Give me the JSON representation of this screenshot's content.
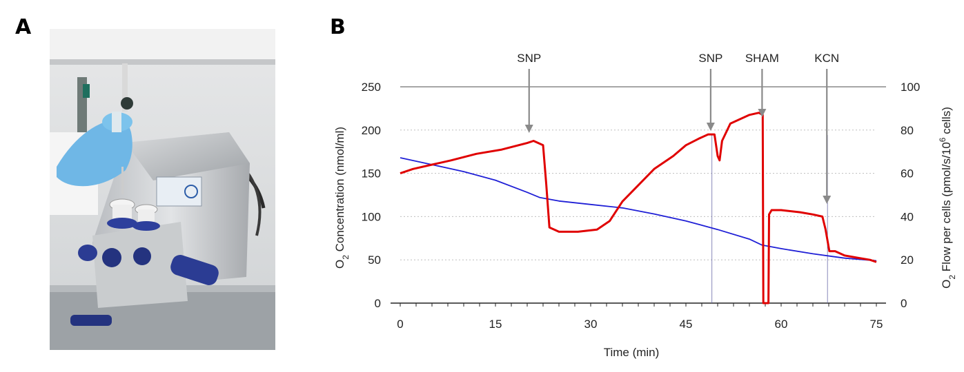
{
  "panels": {
    "a_label": "A",
    "b_label": "B"
  },
  "photo": {
    "subject": "oxygraph-instrument-photo"
  },
  "chart_data": {
    "type": "line",
    "title": "",
    "xlabel": "Time (min)",
    "ylabel_left": "O2 Concentration (nmol/ml)",
    "ylabel_right": "O2 Flow per cells (pmol/s/10^6 cells)",
    "xlim": [
      0,
      75
    ],
    "ylim_left": [
      0,
      250
    ],
    "ylim_right": [
      0,
      100
    ],
    "x_ticks": [
      0,
      15,
      30,
      45,
      60,
      75
    ],
    "y_ticks_left": [
      0,
      50,
      100,
      150,
      200,
      250
    ],
    "y_ticks_right": [
      0,
      20,
      40,
      60,
      80,
      100
    ],
    "grid": "horizontal dotted",
    "series": [
      {
        "name": "",
        "axis": "left",
        "color": "#1f1fd6",
        "x": [
          0,
          5,
          10,
          15,
          20,
          22,
          25,
          30,
          35,
          40,
          45,
          50,
          55,
          57,
          60,
          65,
          68,
          70,
          75
        ],
        "y": [
          168,
          160,
          152,
          142,
          128,
          122,
          118,
          114,
          110,
          103,
          95,
          85,
          74,
          67,
          63,
          57,
          54,
          52,
          49
        ]
      },
      {
        "name": "",
        "axis": "right",
        "color": "#e00000",
        "x": [
          0,
          2,
          5,
          8,
          12,
          16,
          20,
          21,
          22.5,
          23,
          23.5,
          25,
          28,
          31,
          33,
          35,
          38,
          40,
          43,
          45,
          47,
          48.5,
          49.5,
          50,
          50.3,
          50.7,
          52,
          55,
          56.5,
          57.1,
          57.2,
          57.8,
          58,
          58.1,
          58.5,
          60,
          63,
          65,
          66.5,
          67,
          67.6,
          68.5,
          70,
          72,
          74,
          75
        ],
        "y": [
          60,
          62,
          64,
          66,
          69,
          71,
          74,
          75,
          73,
          55,
          35,
          33,
          33,
          34,
          38,
          47,
          56,
          62,
          68,
          73,
          76,
          78,
          78,
          68,
          66,
          75,
          83,
          87,
          88,
          87,
          0,
          0,
          0,
          41,
          43,
          43,
          42,
          41,
          40,
          34,
          24,
          24,
          22,
          21,
          20,
          19
        ]
      }
    ],
    "annotations": [
      {
        "label": "SNP",
        "x": 20.3
      },
      {
        "label": "SNP",
        "x": 48.9
      },
      {
        "label": "SHAM",
        "x": 57
      },
      {
        "label": "KCN",
        "x": 67.2
      }
    ],
    "vertical_lines_x": [
      49.1,
      67.3
    ]
  }
}
